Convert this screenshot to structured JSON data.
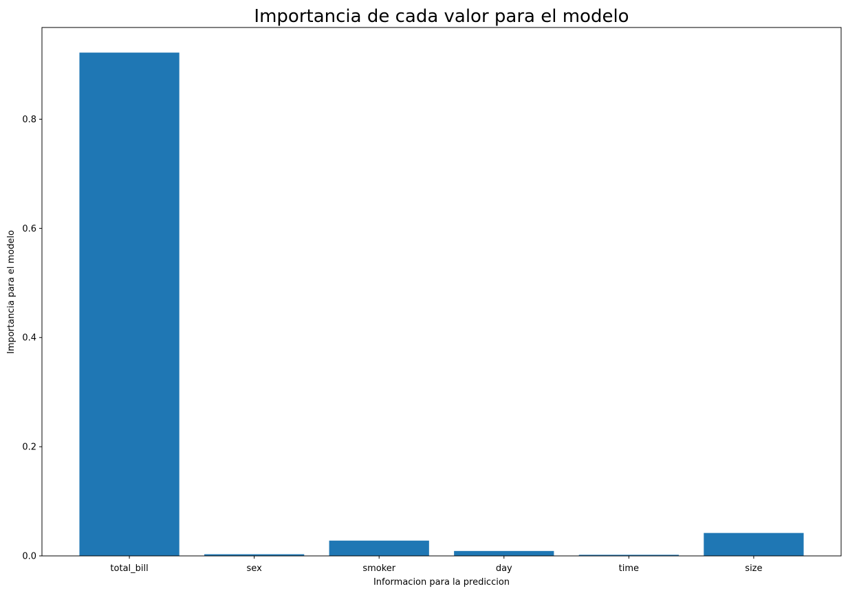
{
  "chart_data": {
    "type": "bar",
    "title": "Importancia de cada valor para el modelo",
    "xlabel": "Informacion para la prediccion",
    "ylabel": "Importancia para el modelo",
    "categories": [
      "total_bill",
      "sex",
      "smoker",
      "day",
      "time",
      "size"
    ],
    "values": [
      0.922,
      0.003,
      0.028,
      0.009,
      0.002,
      0.042
    ],
    "ylim": [
      0.0,
      0.968
    ],
    "yticks": [
      0.0,
      0.2,
      0.4,
      0.6,
      0.8
    ],
    "ytick_labels": [
      "0.0",
      "0.2",
      "0.4",
      "0.6",
      "0.8"
    ],
    "bar_color": "#1f77b4",
    "grid": false,
    "legend": "none"
  }
}
